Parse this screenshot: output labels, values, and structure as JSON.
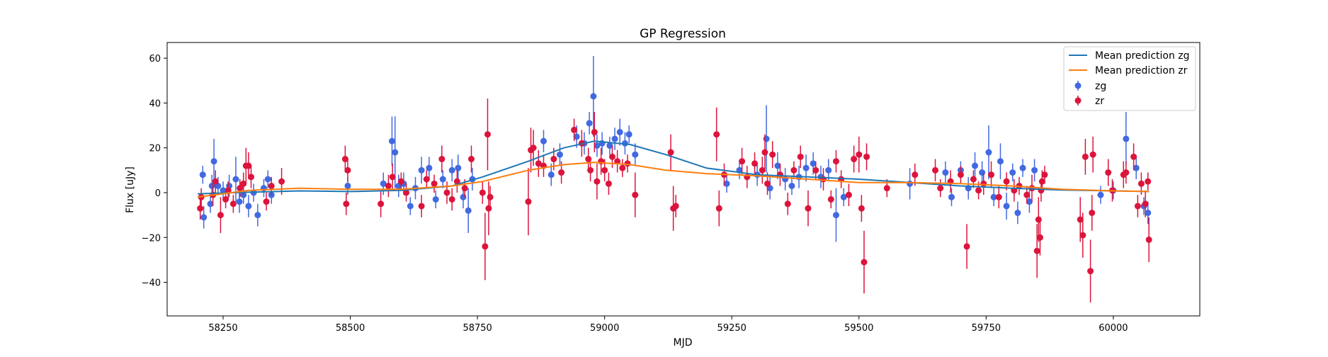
{
  "chart_data": {
    "type": "scatter",
    "title": "GP Regression",
    "xlabel": "MJD",
    "ylabel": "Flux [uJy]",
    "xlim": [
      58140,
      60170
    ],
    "ylim": [
      -55,
      67
    ],
    "x_ticks": [
      58250,
      58500,
      58750,
      59000,
      59250,
      59500,
      59750,
      60000
    ],
    "y_ticks": [
      -40,
      -20,
      0,
      20,
      40,
      60
    ],
    "grid": false,
    "legend_position": "top-right",
    "legend": [
      "Mean prediction zg",
      "Mean prediction zr",
      "zg",
      "zr"
    ],
    "colors": {
      "mean_zg": "#1f77b4",
      "mean_zr": "#ff7f0e",
      "zg": "#4169e1",
      "zr": "#dc143c",
      "axes": "#000000"
    },
    "series": [
      {
        "name": "Mean prediction zg",
        "kind": "line",
        "x": [
          58200,
          58300,
          58400,
          58500,
          58600,
          58700,
          58760,
          58850,
          58920,
          58980,
          59050,
          59120,
          59200,
          59300,
          59400,
          59500,
          59600,
          59700,
          59800,
          59900,
          60000,
          60070
        ],
        "y": [
          -0.5,
          0.2,
          0.8,
          0.5,
          1.0,
          3.0,
          7.0,
          14.0,
          20.0,
          23.0,
          21.5,
          17.0,
          11.0,
          8.0,
          7.0,
          6.0,
          4.5,
          3.0,
          2.0,
          1.2,
          0.8,
          0.5
        ]
      },
      {
        "name": "Mean prediction zr",
        "kind": "line",
        "x": [
          58200,
          58300,
          58400,
          58500,
          58600,
          58700,
          58760,
          58850,
          58920,
          58980,
          59050,
          59120,
          59200,
          59300,
          59400,
          59500,
          59600,
          59700,
          59800,
          59900,
          60000,
          60070
        ],
        "y": [
          -2.0,
          1.0,
          2.0,
          1.5,
          1.5,
          3.0,
          5.0,
          10.0,
          12.5,
          13.5,
          12.5,
          10.0,
          8.5,
          7.5,
          6.0,
          4.5,
          4.5,
          4.0,
          3.0,
          1.5,
          0.8,
          0.5
        ]
      },
      {
        "name": "zg",
        "kind": "errorbar",
        "points": [
          [
            58210,
            8,
            4
          ],
          [
            58212,
            -11,
            5
          ],
          [
            58225,
            -5,
            4
          ],
          [
            58228,
            3,
            5
          ],
          [
            58232,
            14,
            10
          ],
          [
            58240,
            3,
            4
          ],
          [
            58250,
            1,
            4
          ],
          [
            58262,
            3,
            5
          ],
          [
            58275,
            6,
            10
          ],
          [
            58282,
            -4,
            5
          ],
          [
            58290,
            -1,
            4
          ],
          [
            58300,
            -6,
            5
          ],
          [
            58310,
            0,
            4
          ],
          [
            58318,
            -10,
            5
          ],
          [
            58330,
            2,
            4
          ],
          [
            58338,
            6,
            4
          ],
          [
            58345,
            -1,
            4
          ],
          [
            58495,
            3,
            4
          ],
          [
            58565,
            4,
            5
          ],
          [
            58582,
            23,
            11
          ],
          [
            58588,
            18,
            16
          ],
          [
            58595,
            3,
            5
          ],
          [
            58605,
            4,
            5
          ],
          [
            58618,
            -6,
            4
          ],
          [
            58628,
            2,
            5
          ],
          [
            58640,
            10,
            6
          ],
          [
            58655,
            11,
            5
          ],
          [
            58668,
            -3,
            4
          ],
          [
            58682,
            6,
            4
          ],
          [
            58700,
            10,
            5
          ],
          [
            58712,
            11,
            6
          ],
          [
            58722,
            -2,
            5
          ],
          [
            58732,
            -8,
            10
          ],
          [
            58740,
            6,
            5
          ],
          [
            58880,
            23,
            5
          ],
          [
            58895,
            8,
            5
          ],
          [
            58912,
            17,
            5
          ],
          [
            58945,
            25,
            5
          ],
          [
            58960,
            22,
            5
          ],
          [
            58970,
            31,
            5
          ],
          [
            58978,
            43,
            18
          ],
          [
            58985,
            21,
            5
          ],
          [
            58995,
            22,
            5
          ],
          [
            59010,
            21,
            4
          ],
          [
            59020,
            24,
            5
          ],
          [
            59030,
            27,
            6
          ],
          [
            59040,
            22,
            5
          ],
          [
            59048,
            26,
            4
          ],
          [
            59060,
            17,
            5
          ],
          [
            59240,
            4,
            4
          ],
          [
            59265,
            10,
            4
          ],
          [
            59300,
            8,
            5
          ],
          [
            59318,
            24,
            15
          ],
          [
            59325,
            2,
            5
          ],
          [
            59340,
            12,
            6
          ],
          [
            59355,
            6,
            5
          ],
          [
            59368,
            3,
            4
          ],
          [
            59382,
            7,
            5
          ],
          [
            59396,
            11,
            6
          ],
          [
            59410,
            13,
            5
          ],
          [
            59425,
            7,
            5
          ],
          [
            59440,
            10,
            5
          ],
          [
            59455,
            -10,
            12
          ],
          [
            59470,
            -2,
            4
          ],
          [
            59600,
            4,
            7
          ],
          [
            59670,
            9,
            5
          ],
          [
            59682,
            -2,
            4
          ],
          [
            59700,
            10,
            4
          ],
          [
            59715,
            2,
            5
          ],
          [
            59728,
            12,
            6
          ],
          [
            59742,
            9,
            5
          ],
          [
            59755,
            18,
            12
          ],
          [
            59765,
            -2,
            4
          ],
          [
            59778,
            14,
            8
          ],
          [
            59790,
            -6,
            6
          ],
          [
            59802,
            9,
            4
          ],
          [
            59812,
            -9,
            5
          ],
          [
            59822,
            11,
            4
          ],
          [
            59835,
            -4,
            5
          ],
          [
            59845,
            10,
            5
          ],
          [
            59975,
            -1,
            4
          ],
          [
            60000,
            1,
            4
          ],
          [
            60025,
            24,
            12
          ],
          [
            60045,
            11,
            5
          ],
          [
            60060,
            -6,
            4
          ],
          [
            60068,
            -9,
            5
          ]
        ]
      },
      {
        "name": "zr",
        "kind": "errorbar",
        "points": [
          [
            58205,
            -7,
            5
          ],
          [
            58207,
            -2,
            4
          ],
          [
            58230,
            -1,
            5
          ],
          [
            58235,
            5,
            5
          ],
          [
            58245,
            -10,
            8
          ],
          [
            58255,
            -3,
            4
          ],
          [
            58260,
            1,
            4
          ],
          [
            58270,
            -5,
            4
          ],
          [
            58283,
            2,
            4
          ],
          [
            58290,
            4,
            5
          ],
          [
            58295,
            12,
            8
          ],
          [
            58300,
            12,
            6
          ],
          [
            58305,
            7,
            5
          ],
          [
            58335,
            -4,
            4
          ],
          [
            58345,
            3,
            4
          ],
          [
            58365,
            5,
            6
          ],
          [
            58490,
            15,
            6
          ],
          [
            58492,
            -5,
            5
          ],
          [
            58495,
            10,
            5
          ],
          [
            58560,
            -5,
            6
          ],
          [
            58575,
            3,
            5
          ],
          [
            58583,
            7,
            6
          ],
          [
            58600,
            5,
            4
          ],
          [
            58610,
            0,
            4
          ],
          [
            58640,
            -6,
            5
          ],
          [
            58650,
            6,
            4
          ],
          [
            58665,
            4,
            4
          ],
          [
            58680,
            15,
            6
          ],
          [
            58690,
            0,
            5
          ],
          [
            58700,
            -3,
            5
          ],
          [
            58710,
            5,
            5
          ],
          [
            58725,
            2,
            4
          ],
          [
            58738,
            15,
            6
          ],
          [
            58760,
            0,
            5
          ],
          [
            58765,
            -24,
            15
          ],
          [
            58770,
            26,
            16
          ],
          [
            58772,
            -7,
            12
          ],
          [
            58775,
            -2,
            5
          ],
          [
            58850,
            -4,
            15
          ],
          [
            58855,
            19,
            10
          ],
          [
            58860,
            20,
            8
          ],
          [
            58870,
            13,
            6
          ],
          [
            58880,
            12,
            5
          ],
          [
            58900,
            15,
            5
          ],
          [
            58915,
            9,
            5
          ],
          [
            58940,
            28,
            5
          ],
          [
            58955,
            22,
            6
          ],
          [
            58968,
            15,
            5
          ],
          [
            58972,
            10,
            5
          ],
          [
            58980,
            27,
            9
          ],
          [
            58985,
            5,
            8
          ],
          [
            58993,
            14,
            6
          ],
          [
            59000,
            10,
            5
          ],
          [
            59008,
            4,
            5
          ],
          [
            59015,
            16,
            5
          ],
          [
            59025,
            14,
            5
          ],
          [
            59035,
            11,
            4
          ],
          [
            59045,
            13,
            4
          ],
          [
            59060,
            -1,
            10
          ],
          [
            59130,
            18,
            8
          ],
          [
            59135,
            -7,
            10
          ],
          [
            59140,
            -6,
            5
          ],
          [
            59220,
            26,
            12
          ],
          [
            59225,
            -7,
            8
          ],
          [
            59235,
            8,
            5
          ],
          [
            59270,
            14,
            6
          ],
          [
            59280,
            7,
            5
          ],
          [
            59295,
            13,
            5
          ],
          [
            59310,
            10,
            6
          ],
          [
            59315,
            18,
            8
          ],
          [
            59320,
            4,
            5
          ],
          [
            59330,
            17,
            6
          ],
          [
            59345,
            8,
            5
          ],
          [
            59360,
            -5,
            5
          ],
          [
            59372,
            10,
            4
          ],
          [
            59385,
            16,
            5
          ],
          [
            59400,
            -7,
            8
          ],
          [
            59415,
            10,
            4
          ],
          [
            59430,
            6,
            5
          ],
          [
            59445,
            -3,
            4
          ],
          [
            59455,
            14,
            5
          ],
          [
            59465,
            6,
            4
          ],
          [
            59480,
            -1,
            5
          ],
          [
            59490,
            15,
            6
          ],
          [
            59500,
            17,
            8
          ],
          [
            59505,
            -7,
            6
          ],
          [
            59510,
            -31,
            14
          ],
          [
            59515,
            16,
            6
          ],
          [
            59555,
            2,
            4
          ],
          [
            59610,
            8,
            5
          ],
          [
            59650,
            10,
            5
          ],
          [
            59660,
            2,
            4
          ],
          [
            59680,
            5,
            5
          ],
          [
            59700,
            8,
            4
          ],
          [
            59712,
            -24,
            10
          ],
          [
            59725,
            6,
            4
          ],
          [
            59735,
            1,
            4
          ],
          [
            59745,
            4,
            5
          ],
          [
            59760,
            8,
            6
          ],
          [
            59775,
            -2,
            5
          ],
          [
            59790,
            5,
            4
          ],
          [
            59805,
            1,
            5
          ],
          [
            59815,
            3,
            4
          ],
          [
            59830,
            -1,
            4
          ],
          [
            59840,
            2,
            6
          ],
          [
            59850,
            -26,
            12
          ],
          [
            59853,
            -12,
            10
          ],
          [
            59856,
            -20,
            8
          ],
          [
            59858,
            1,
            5
          ],
          [
            59860,
            5,
            5
          ],
          [
            59865,
            8,
            4
          ],
          [
            59935,
            -12,
            10
          ],
          [
            59940,
            -19,
            10
          ],
          [
            59945,
            16,
            8
          ],
          [
            59955,
            -35,
            14
          ],
          [
            59958,
            -9,
            8
          ],
          [
            59960,
            17,
            8
          ],
          [
            59990,
            9,
            6
          ],
          [
            59998,
            1,
            5
          ],
          [
            60020,
            8,
            6
          ],
          [
            60025,
            9,
            5
          ],
          [
            60040,
            16,
            6
          ],
          [
            60048,
            -6,
            5
          ],
          [
            60055,
            4,
            5
          ],
          [
            60063,
            -5,
            6
          ],
          [
            60068,
            5,
            4
          ],
          [
            60070,
            -21,
            10
          ]
        ]
      }
    ]
  }
}
